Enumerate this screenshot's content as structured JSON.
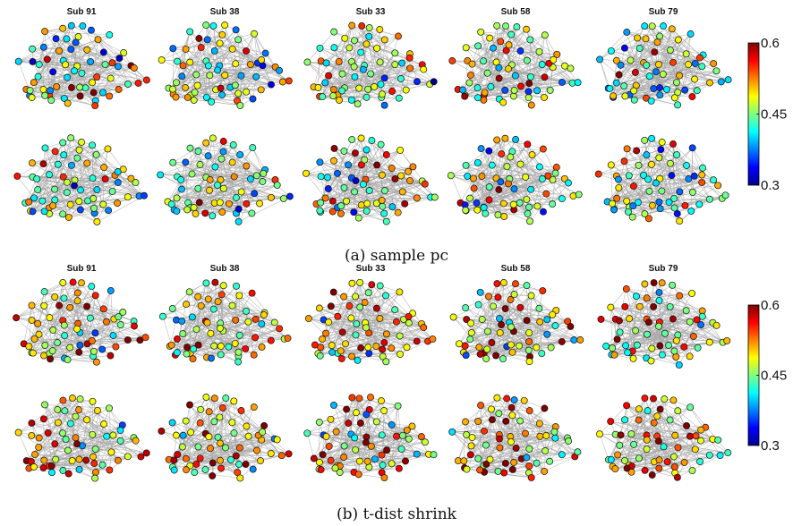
{
  "panels": [
    {
      "caption": "(a) sample pc",
      "method": "sample pc"
    },
    {
      "caption": "(b) t-dist shrink",
      "method": "t-dist shrink"
    }
  ],
  "chart_data": [
    {
      "type": "network",
      "method": "sample pc",
      "subjects": [
        "Sub 91",
        "Sub 38",
        "Sub 33",
        "Sub 58",
        "Sub 79"
      ],
      "rows": 2,
      "colorbar": {
        "colormap": "jet",
        "min": 0.3,
        "max": 0.6,
        "ticks": [
          "0.6",
          "0.45",
          "0.3"
        ]
      },
      "edge_color": "#a6a6a6",
      "node_value_range": [
        0.3,
        0.6
      ],
      "node_value_mean": 0.46
    },
    {
      "type": "network",
      "method": "t-dist shrink",
      "subjects": [
        "Sub 91",
        "Sub 38",
        "Sub 33",
        "Sub 58",
        "Sub 79"
      ],
      "rows": 2,
      "colorbar": {
        "colormap": "jet",
        "min": 0.3,
        "max": 0.6,
        "ticks": [
          "0.6",
          "0.45",
          "0.3"
        ]
      },
      "edge_color": "#a6a6a6",
      "node_value_range": [
        0.3,
        0.6
      ],
      "node_value_mean": 0.5
    }
  ]
}
